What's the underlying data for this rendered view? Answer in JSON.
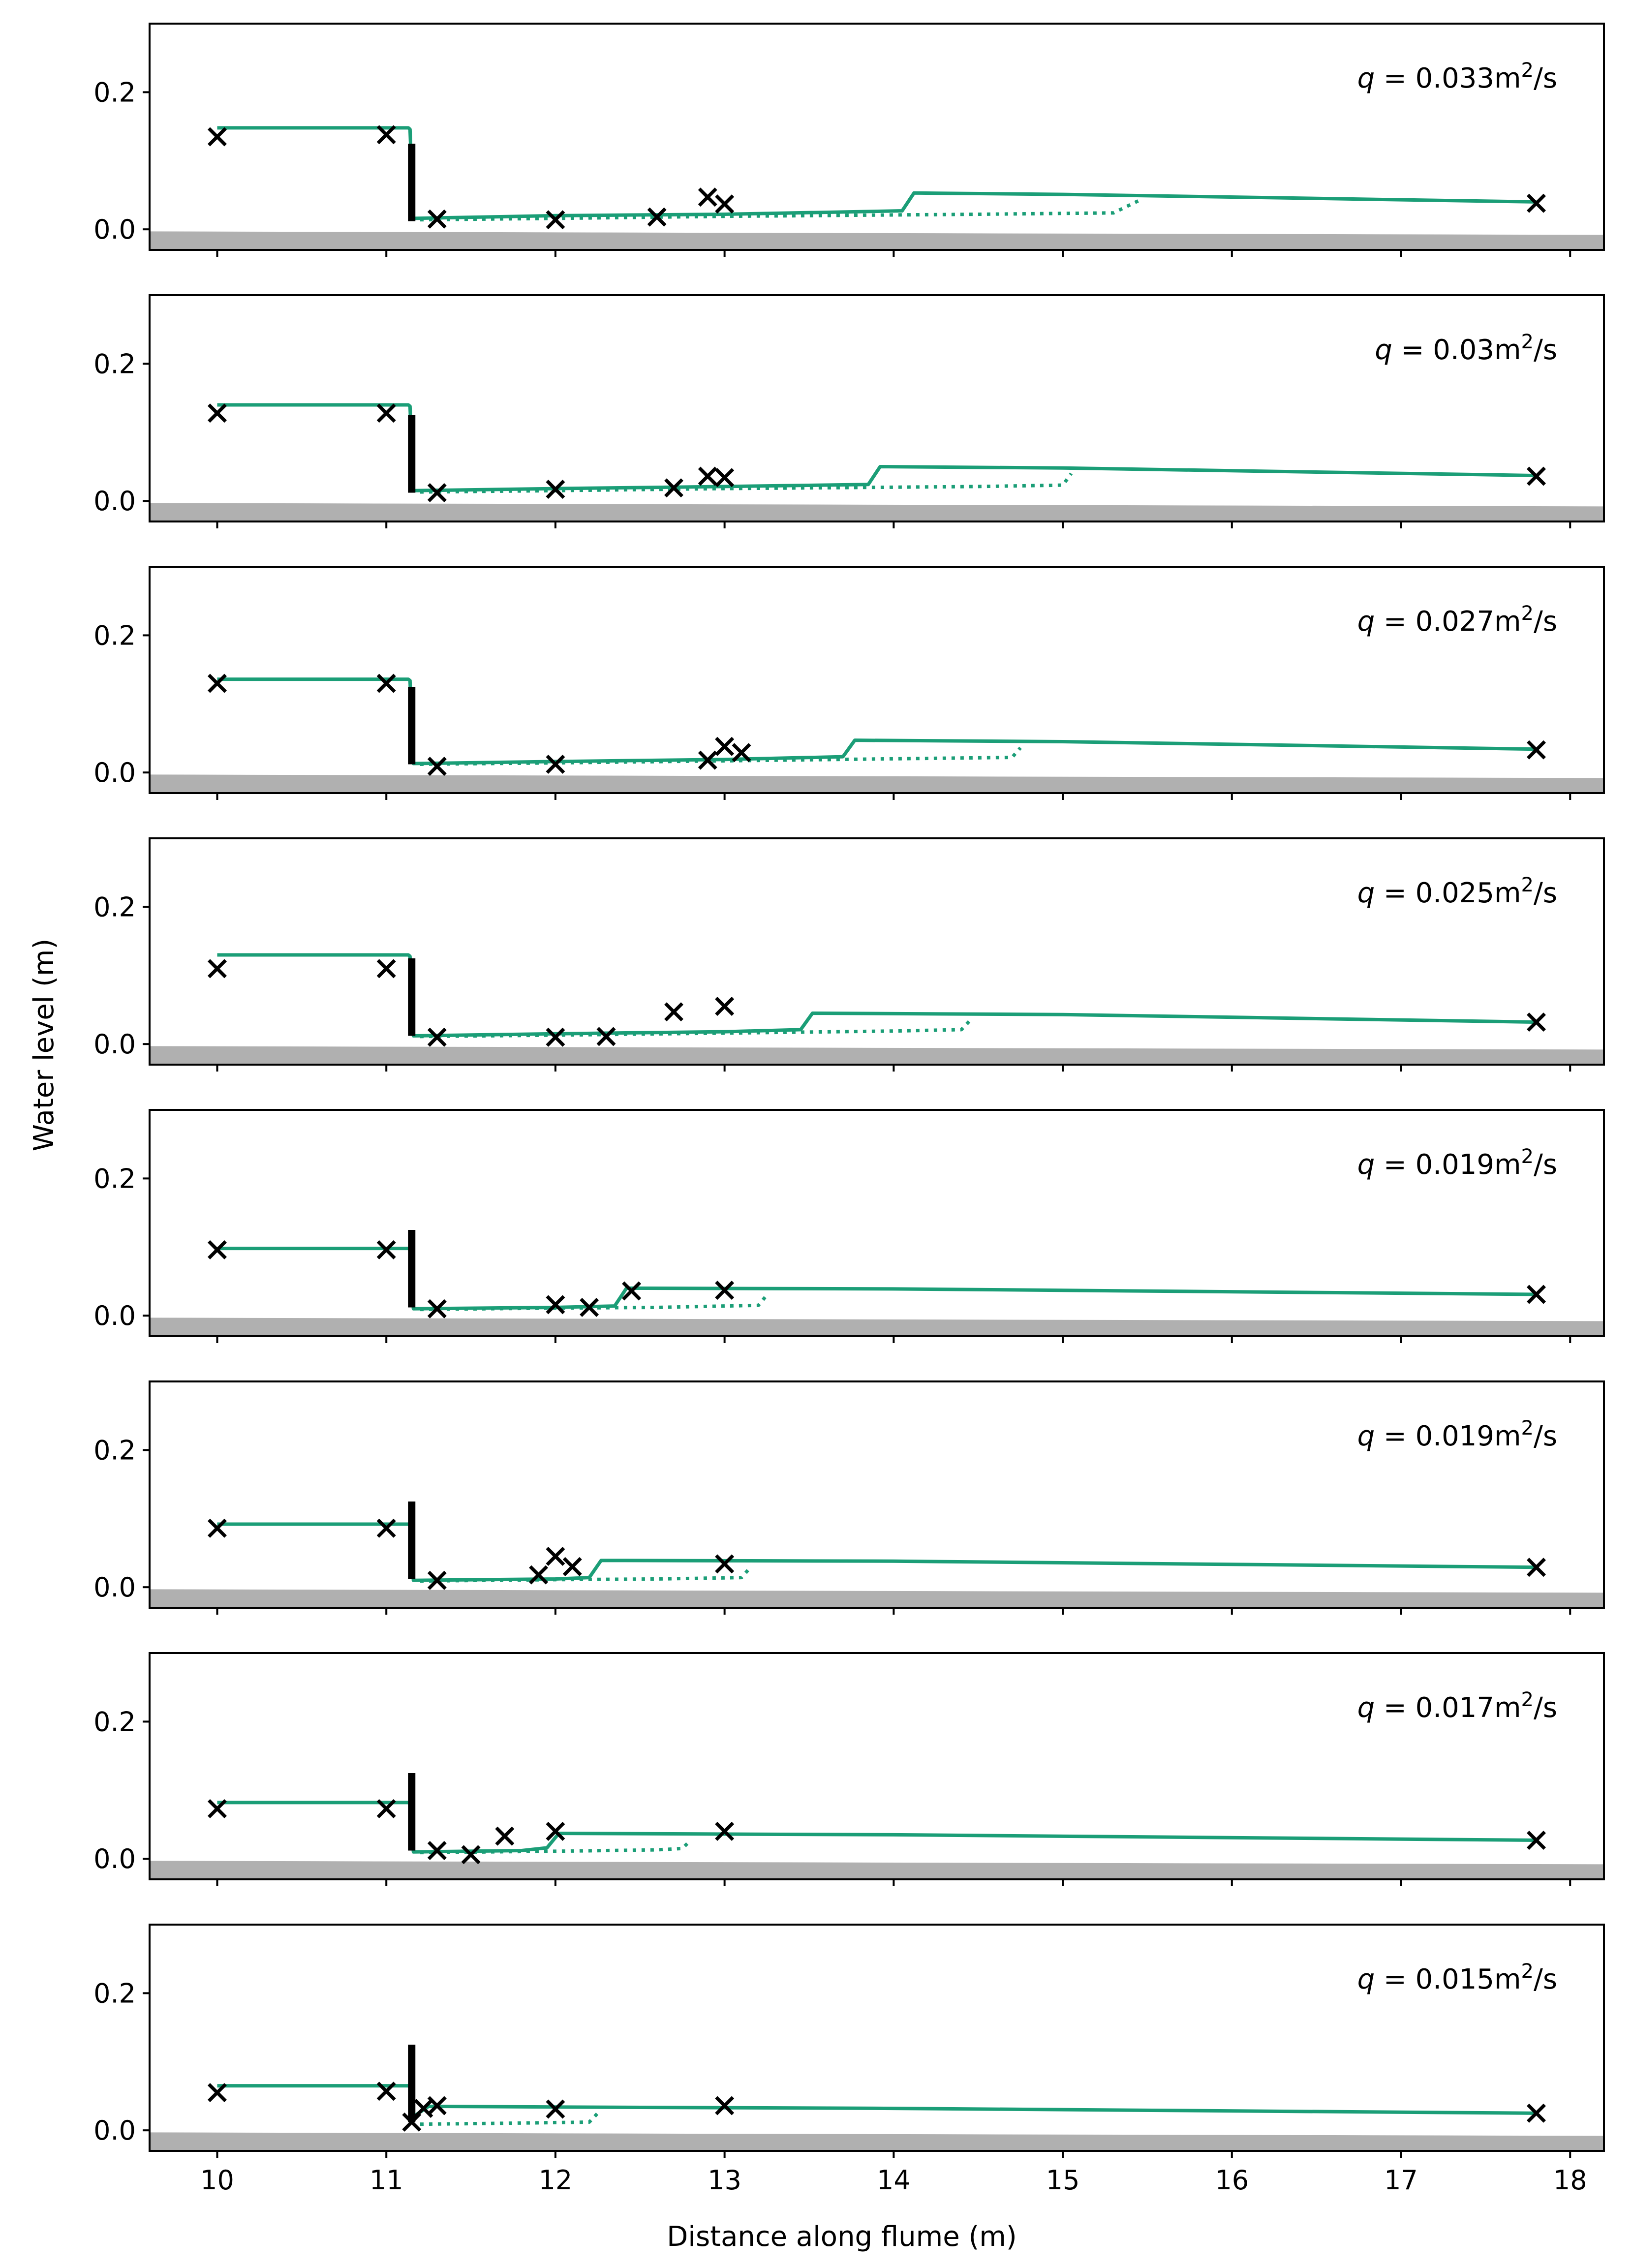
{
  "chart_data": {
    "type": "line",
    "xlabel": "Distance along flume (m)",
    "ylabel": "Water level (m)",
    "xlim": [
      9.6,
      18.2
    ],
    "ylim": [
      -0.03,
      0.3
    ],
    "x_ticks": [
      "10",
      "11",
      "12",
      "13",
      "14",
      "15",
      "16",
      "17",
      "18"
    ],
    "y_ticks": [
      "0.0",
      "0.2"
    ],
    "series_styles": {
      "model_solid": "#1b9e77",
      "model_dotted": "#1b9e77",
      "measured_markers": "#000000",
      "bed": "#b0b0b0",
      "gate": "#000000"
    },
    "gate": {
      "x": 11.15,
      "y_bottom": 0.012,
      "y_top": 0.125
    },
    "panels": [
      {
        "q_label": "q",
        "q_value": "= 0.033m",
        "q_unit": "2",
        "q_suffix": "/s",
        "solid": [
          [
            10,
            0.148
          ],
          [
            11.13,
            0.148
          ],
          [
            11.14,
            0.146
          ],
          [
            11.16,
            0.016
          ],
          [
            12.0,
            0.02
          ],
          [
            13.0,
            0.022
          ],
          [
            14.05,
            0.027
          ],
          [
            14.12,
            0.053
          ],
          [
            15.0,
            0.051
          ],
          [
            17.8,
            0.04
          ]
        ],
        "dotted": [
          [
            11.2,
            0.014
          ],
          [
            12.0,
            0.016
          ],
          [
            13.0,
            0.019
          ],
          [
            14.5,
            0.022
          ],
          [
            15.3,
            0.024
          ],
          [
            15.45,
            0.042
          ]
        ],
        "measured": [
          [
            10,
            0.135
          ],
          [
            11,
            0.138
          ],
          [
            11.3,
            0.015
          ],
          [
            12,
            0.014
          ],
          [
            12.6,
            0.018
          ],
          [
            12.9,
            0.047
          ],
          [
            13,
            0.037
          ],
          [
            17.8,
            0.038
          ]
        ]
      },
      {
        "q_label": "q",
        "q_value": "= 0.03m",
        "q_unit": "2",
        "q_suffix": "/s",
        "solid": [
          [
            10,
            0.14
          ],
          [
            11.13,
            0.14
          ],
          [
            11.14,
            0.138
          ],
          [
            11.16,
            0.015
          ],
          [
            12.0,
            0.018
          ],
          [
            13.0,
            0.021
          ],
          [
            13.85,
            0.024
          ],
          [
            13.92,
            0.05
          ],
          [
            15.0,
            0.048
          ],
          [
            17.8,
            0.037
          ]
        ],
        "dotted": [
          [
            11.2,
            0.013
          ],
          [
            12.0,
            0.015
          ],
          [
            13.0,
            0.018
          ],
          [
            14.5,
            0.021
          ],
          [
            15.0,
            0.023
          ],
          [
            15.05,
            0.04
          ]
        ],
        "measured": [
          [
            10,
            0.128
          ],
          [
            11,
            0.128
          ],
          [
            11.3,
            0.012
          ],
          [
            12,
            0.017
          ],
          [
            12.7,
            0.019
          ],
          [
            12.9,
            0.036
          ],
          [
            13,
            0.034
          ],
          [
            17.8,
            0.036
          ]
        ]
      },
      {
        "q_label": "q",
        "q_value": "= 0.027m",
        "q_unit": "2",
        "q_suffix": "/s",
        "solid": [
          [
            10,
            0.136
          ],
          [
            11.13,
            0.136
          ],
          [
            11.14,
            0.134
          ],
          [
            11.16,
            0.013
          ],
          [
            12.0,
            0.016
          ],
          [
            13.0,
            0.019
          ],
          [
            13.7,
            0.023
          ],
          [
            13.77,
            0.047
          ],
          [
            15.0,
            0.045
          ],
          [
            17.8,
            0.034
          ]
        ],
        "dotted": [
          [
            11.2,
            0.012
          ],
          [
            12.0,
            0.014
          ],
          [
            13.0,
            0.017
          ],
          [
            14.0,
            0.02
          ],
          [
            14.7,
            0.022
          ],
          [
            14.75,
            0.036
          ]
        ],
        "measured": [
          [
            10,
            0.13
          ],
          [
            11,
            0.13
          ],
          [
            11.3,
            0.009
          ],
          [
            12,
            0.012
          ],
          [
            12.9,
            0.018
          ],
          [
            13,
            0.038
          ],
          [
            13.1,
            0.029
          ],
          [
            17.8,
            0.033
          ]
        ]
      },
      {
        "q_label": "q",
        "q_value": "= 0.025m",
        "q_unit": "2",
        "q_suffix": "/s",
        "solid": [
          [
            10,
            0.13
          ],
          [
            11.13,
            0.13
          ],
          [
            11.14,
            0.128
          ],
          [
            11.16,
            0.012
          ],
          [
            12.0,
            0.015
          ],
          [
            13.0,
            0.018
          ],
          [
            13.45,
            0.021
          ],
          [
            13.52,
            0.045
          ],
          [
            15.0,
            0.043
          ],
          [
            17.8,
            0.032
          ]
        ],
        "dotted": [
          [
            11.2,
            0.011
          ],
          [
            12.0,
            0.013
          ],
          [
            13.0,
            0.016
          ],
          [
            14.0,
            0.019
          ],
          [
            14.4,
            0.021
          ],
          [
            14.45,
            0.034
          ]
        ],
        "measured": [
          [
            10,
            0.11
          ],
          [
            11,
            0.11
          ],
          [
            11.3,
            0.01
          ],
          [
            12,
            0.01
          ],
          [
            12.3,
            0.011
          ],
          [
            12.7,
            0.047
          ],
          [
            13,
            0.055
          ],
          [
            17.8,
            0.032
          ]
        ]
      },
      {
        "q_label": "q",
        "q_value": "= 0.019m",
        "q_unit": "2",
        "q_suffix": "/s",
        "solid": [
          [
            10,
            0.098
          ],
          [
            11.13,
            0.098
          ],
          [
            11.14,
            0.096
          ],
          [
            11.16,
            0.01
          ],
          [
            12.0,
            0.012
          ],
          [
            12.35,
            0.014
          ],
          [
            12.42,
            0.04
          ],
          [
            14.0,
            0.039
          ],
          [
            17.8,
            0.031
          ]
        ],
        "dotted": [
          [
            11.2,
            0.009
          ],
          [
            12.0,
            0.011
          ],
          [
            12.6,
            0.012
          ],
          [
            13.2,
            0.015
          ],
          [
            13.25,
            0.03
          ]
        ],
        "measured": [
          [
            10,
            0.096
          ],
          [
            11,
            0.096
          ],
          [
            11.3,
            0.01
          ],
          [
            12,
            0.016
          ],
          [
            12.2,
            0.012
          ],
          [
            12.45,
            0.036
          ],
          [
            13,
            0.037
          ],
          [
            17.8,
            0.031
          ]
        ]
      },
      {
        "q_label": "q",
        "q_value": "= 0.019m",
        "q_unit": "2",
        "q_suffix": "/s",
        "solid": [
          [
            10,
            0.092
          ],
          [
            11.13,
            0.092
          ],
          [
            11.14,
            0.09
          ],
          [
            11.16,
            0.01
          ],
          [
            12.0,
            0.012
          ],
          [
            12.2,
            0.014
          ],
          [
            12.27,
            0.039
          ],
          [
            14.0,
            0.038
          ],
          [
            17.8,
            0.029
          ]
        ],
        "dotted": [
          [
            11.2,
            0.009
          ],
          [
            12.0,
            0.011
          ],
          [
            12.6,
            0.012
          ],
          [
            13.1,
            0.014
          ],
          [
            13.15,
            0.028
          ]
        ],
        "measured": [
          [
            10,
            0.086
          ],
          [
            11,
            0.086
          ],
          [
            11.3,
            0.01
          ],
          [
            11.9,
            0.018
          ],
          [
            12,
            0.045
          ],
          [
            12.1,
            0.03
          ],
          [
            13,
            0.034
          ],
          [
            17.8,
            0.029
          ]
        ]
      },
      {
        "q_label": "q",
        "q_value": "= 0.017m",
        "q_unit": "2",
        "q_suffix": "/s",
        "solid": [
          [
            10,
            0.082
          ],
          [
            11.13,
            0.082
          ],
          [
            11.14,
            0.08
          ],
          [
            11.16,
            0.01
          ],
          [
            11.8,
            0.012
          ],
          [
            11.95,
            0.016
          ],
          [
            12.02,
            0.037
          ],
          [
            14.0,
            0.035
          ],
          [
            17.8,
            0.027
          ]
        ],
        "dotted": [
          [
            11.2,
            0.009
          ],
          [
            12.0,
            0.011
          ],
          [
            12.6,
            0.013
          ],
          [
            12.75,
            0.015
          ],
          [
            12.8,
            0.027
          ]
        ],
        "measured": [
          [
            10,
            0.073
          ],
          [
            11,
            0.073
          ],
          [
            11.3,
            0.012
          ],
          [
            11.5,
            0.006
          ],
          [
            11.7,
            0.033
          ],
          [
            12,
            0.04
          ],
          [
            13,
            0.04
          ],
          [
            17.8,
            0.027
          ]
        ]
      },
      {
        "q_label": "q",
        "q_value": "= 0.015m",
        "q_unit": "2",
        "q_suffix": "/s",
        "solid": [
          [
            10,
            0.065
          ],
          [
            11.13,
            0.065
          ],
          [
            11.14,
            0.063
          ],
          [
            11.16,
            0.02
          ],
          [
            11.25,
            0.035
          ],
          [
            12.0,
            0.034
          ],
          [
            14.0,
            0.032
          ],
          [
            17.8,
            0.025
          ]
        ],
        "dotted": [
          [
            11.2,
            0.009
          ],
          [
            11.6,
            0.01
          ],
          [
            12.2,
            0.012
          ],
          [
            12.25,
            0.025
          ]
        ],
        "measured": [
          [
            10,
            0.055
          ],
          [
            11,
            0.057
          ],
          [
            11.15,
            0.012
          ],
          [
            11.22,
            0.032
          ],
          [
            11.3,
            0.036
          ],
          [
            12,
            0.031
          ],
          [
            13,
            0.036
          ],
          [
            17.8,
            0.025
          ]
        ]
      }
    ]
  }
}
